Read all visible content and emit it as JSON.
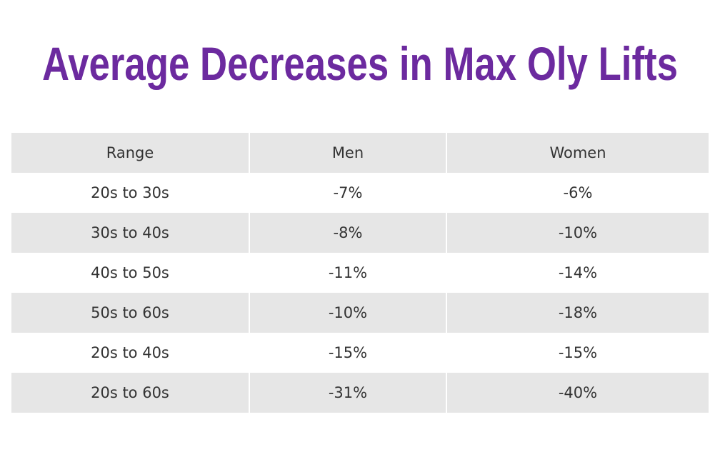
{
  "header": {
    "title": "Average Decreases in Max Oly Lifts"
  },
  "table": {
    "columns": [
      "Range",
      "Men",
      "Women"
    ],
    "rows": [
      [
        "20s to 30s",
        "-7%",
        "-6%"
      ],
      [
        "30s to 40s",
        "-8%",
        "-10%"
      ],
      [
        "40s to 50s",
        "-11%",
        "-14%"
      ],
      [
        "50s to 60s",
        "-10%",
        "-18%"
      ],
      [
        "20s to 40s",
        "-15%",
        "-15%"
      ],
      [
        "20s to 60s",
        "-31%",
        "-40%"
      ]
    ]
  }
}
